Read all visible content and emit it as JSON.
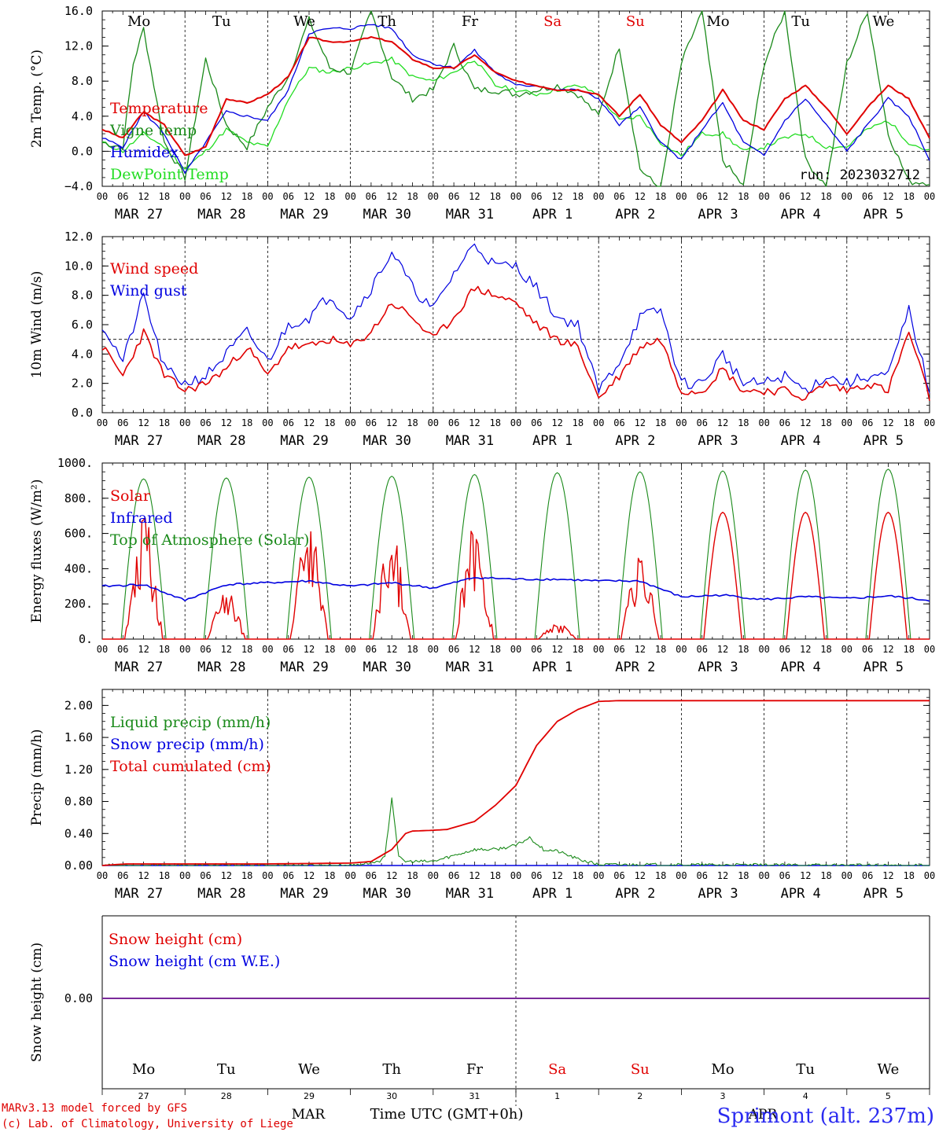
{
  "panels": [
    {
      "id": "temp",
      "ylabel": "2m Temp. (°C)",
      "ylim": [
        -4.0,
        16.0
      ],
      "ticks": [
        "16.0",
        "12.0",
        "8.0",
        "4.0",
        "0.0",
        "−4.0"
      ],
      "tick_values": [
        16,
        12,
        8,
        4,
        0,
        -4
      ],
      "ref_line": 0,
      "day_labels": [
        "Mo",
        "Tu",
        "We",
        "Th",
        "Fr",
        "Sa",
        "Su",
        "Mo",
        "Tu",
        "We"
      ],
      "weekend_color": "#e00000",
      "legend": [
        {
          "label": "Temperature",
          "color": "#e00000"
        },
        {
          "label": "Vigne temp",
          "color": "#1a8a1a"
        },
        {
          "label": "Humidex",
          "color": "#0000e0"
        },
        {
          "label": "DewPoint Temp",
          "color": "#22dd22"
        }
      ],
      "run_label": "run: 2023032712"
    },
    {
      "id": "wind",
      "ylabel": "10m Wind (m/s)",
      "ylim": [
        0,
        12.0
      ],
      "ticks": [
        "12.0",
        "10.0",
        "8.0",
        "6.0",
        "4.0",
        "2.0",
        "0.0"
      ],
      "tick_values": [
        12,
        10,
        8,
        6,
        4,
        2,
        0
      ],
      "ref_line": 5,
      "legend": [
        {
          "label": "Wind speed",
          "color": "#e00000"
        },
        {
          "label": "Wind gust",
          "color": "#0000e0"
        }
      ]
    },
    {
      "id": "energy",
      "ylabel": "Energy fluxes (W/m²)",
      "ylim": [
        0,
        1000
      ],
      "ticks": [
        "1000.",
        "800.",
        "600.",
        "400.",
        "200.",
        "0."
      ],
      "tick_values": [
        1000,
        800,
        600,
        400,
        200,
        0
      ],
      "legend": [
        {
          "label": "Solar",
          "color": "#e00000"
        },
        {
          "label": "Infrared",
          "color": "#0000e0"
        },
        {
          "label": "Top of Atmosphere (Solar)",
          "color": "#1a8a1a"
        }
      ]
    },
    {
      "id": "precip",
      "ylabel": "Precip (mm/h)",
      "ylim": [
        0,
        2.2
      ],
      "ticks": [
        "2.00",
        "1.60",
        "1.20",
        "0.80",
        "0.40",
        "0.00"
      ],
      "tick_values": [
        2.0,
        1.6,
        1.2,
        0.8,
        0.4,
        0.0
      ],
      "legend": [
        {
          "label": "Liquid precip (mm/h)",
          "color": "#1a8a1a"
        },
        {
          "label": "Snow precip (mm/h)",
          "color": "#0000e0"
        },
        {
          "label": "Total cumulated (cm)",
          "color": "#e00000"
        }
      ]
    },
    {
      "id": "snow",
      "ylabel": "Snow height (cm)",
      "ticks": [
        "0.00"
      ],
      "legend": [
        {
          "label": "Snow height (cm)",
          "color": "#e00000"
        },
        {
          "label": "Snow height (cm W.E.)",
          "color": "#0000e0"
        }
      ],
      "day_labels": [
        "Mo",
        "Tu",
        "We",
        "Th",
        "Fr",
        "Sa",
        "Su",
        "Mo",
        "Tu",
        "We"
      ],
      "day_numbers": [
        "27",
        "28",
        "29",
        "30",
        "31",
        "1",
        "2",
        "3",
        "4",
        "5"
      ]
    }
  ],
  "hour_ticks": [
    "00",
    "06",
    "12",
    "18"
  ],
  "final_hour": "00",
  "date_labels": [
    "MAR 27",
    "MAR 28",
    "MAR 29",
    "MAR 30",
    "MAR 31",
    "APR  1",
    "APR  2",
    "APR  3",
    "APR  4",
    "APR  5"
  ],
  "footer": {
    "line1": "MARv3.13 model forced by GFS",
    "line2": "(c) Lab. of Climatology, University of Liege",
    "month_mar": "MAR",
    "month_apr": "APR",
    "time_title": "Time UTC (GMT+0h)",
    "station": "Sprimont (alt. 237m)"
  },
  "chart_data": [
    {
      "type": "line",
      "title": "",
      "ylabel": "2m Temp. (°C)",
      "ylim": [
        -4,
        16
      ],
      "x_unit": "hours since 2023-03-27 00 UTC",
      "series": [
        {
          "name": "Temperature",
          "x": [
            0,
            6,
            12,
            18,
            24,
            30,
            36,
            42,
            48,
            54,
            60,
            66,
            72,
            78,
            84,
            90,
            96,
            102,
            108,
            114,
            120,
            126,
            132,
            138,
            144,
            150,
            156,
            162,
            168,
            174,
            180,
            186,
            192,
            198,
            204,
            210,
            216,
            222,
            228,
            234,
            240
          ],
          "values": [
            2.5,
            1.5,
            4.5,
            3.0,
            -0.5,
            0.5,
            6.0,
            5.5,
            6.5,
            8.5,
            13.0,
            12.5,
            12.5,
            13.0,
            12.5,
            10.5,
            9.5,
            9.5,
            11.0,
            9.0,
            8.0,
            7.5,
            7.0,
            7.0,
            6.5,
            4.0,
            6.5,
            3.0,
            1.0,
            3.5,
            7.0,
            3.5,
            2.5,
            6.0,
            7.5,
            5.0,
            2.0,
            5.0,
            7.5,
            6.0,
            1.5
          ]
        },
        {
          "name": "Vigne temp",
          "x": [
            0,
            6,
            9,
            12,
            18,
            24,
            30,
            36,
            42,
            48,
            54,
            60,
            66,
            72,
            78,
            84,
            90,
            96,
            102,
            108,
            114,
            120,
            126,
            132,
            138,
            144,
            150,
            156,
            162,
            168,
            174,
            180,
            186,
            192,
            198,
            204,
            210,
            216,
            222,
            228,
            234,
            240
          ],
          "values": [
            1.0,
            0.5,
            10.0,
            14.0,
            1.0,
            -3.0,
            10.5,
            3.0,
            0.5,
            5.0,
            8.5,
            15.0,
            9.5,
            9.0,
            16.0,
            8.5,
            6.0,
            7.0,
            12.0,
            7.0,
            7.0,
            6.5,
            7.0,
            7.5,
            6.5,
            4.0,
            12.0,
            -2.0,
            -4.5,
            10.0,
            16.0,
            -1.0,
            -4.0,
            10.0,
            16.0,
            -1.0,
            -4.0,
            10.0,
            16.0,
            2.0,
            -3.5,
            -3.5
          ]
        },
        {
          "name": "Humidex",
          "x": [
            0,
            6,
            12,
            18,
            24,
            30,
            36,
            42,
            48,
            54,
            60,
            66,
            72,
            78,
            84,
            90,
            96,
            102,
            108,
            114,
            120,
            126,
            132,
            138,
            144,
            150,
            156,
            162,
            168,
            174,
            180,
            186,
            192,
            198,
            204,
            210,
            216,
            222,
            228,
            234,
            240
          ],
          "values": [
            1.5,
            0.5,
            4.5,
            2.0,
            -2.5,
            1.0,
            4.5,
            4.0,
            3.5,
            7.0,
            13.5,
            14.0,
            14.0,
            14.5,
            14.0,
            11.0,
            10.0,
            9.5,
            11.5,
            9.0,
            7.5,
            7.5,
            7.0,
            7.0,
            6.0,
            3.0,
            5.0,
            1.0,
            -1.0,
            2.5,
            5.5,
            1.0,
            -0.5,
            3.5,
            6.0,
            3.0,
            0.0,
            3.0,
            6.0,
            4.0,
            -1.0
          ]
        },
        {
          "name": "DewPoint Temp",
          "x": [
            0,
            6,
            12,
            18,
            24,
            30,
            36,
            42,
            48,
            54,
            60,
            66,
            72,
            78,
            84,
            90,
            96,
            102,
            108,
            114,
            120,
            126,
            132,
            138,
            144,
            150,
            156,
            162,
            168,
            174,
            180,
            186,
            192,
            198,
            204,
            210,
            216,
            222,
            228,
            234,
            240
          ],
          "values": [
            1.0,
            0.0,
            2.0,
            0.5,
            -2.0,
            0.0,
            2.5,
            1.0,
            0.5,
            6.0,
            9.5,
            9.0,
            9.5,
            10.0,
            10.5,
            8.5,
            8.0,
            9.0,
            10.5,
            7.5,
            7.0,
            6.5,
            7.0,
            7.5,
            6.5,
            3.5,
            4.0,
            1.0,
            -0.5,
            2.0,
            2.0,
            0.0,
            0.5,
            1.5,
            2.0,
            0.5,
            0.5,
            2.5,
            3.5,
            1.0,
            0.0
          ]
        }
      ]
    },
    {
      "type": "line",
      "title": "",
      "ylabel": "10m Wind (m/s)",
      "ylim": [
        0,
        12
      ],
      "x_unit": "hours since 2023-03-27 00 UTC",
      "series": [
        {
          "name": "Wind speed",
          "x": [
            0,
            6,
            12,
            18,
            24,
            30,
            36,
            42,
            48,
            54,
            60,
            66,
            72,
            78,
            84,
            90,
            96,
            102,
            108,
            114,
            120,
            126,
            132,
            138,
            144,
            150,
            156,
            162,
            168,
            174,
            180,
            186,
            192,
            198,
            204,
            210,
            216,
            222,
            228,
            234,
            240
          ],
          "values": [
            4.5,
            2.5,
            5.5,
            2.5,
            1.5,
            2.0,
            3.0,
            4.5,
            2.5,
            4.5,
            4.5,
            5.0,
            4.5,
            5.5,
            7.5,
            6.5,
            5.0,
            6.5,
            8.5,
            8.0,
            7.5,
            6.0,
            5.0,
            4.5,
            1.0,
            2.5,
            4.5,
            5.0,
            1.5,
            1.5,
            3.0,
            1.5,
            1.5,
            1.5,
            1.0,
            2.0,
            1.5,
            2.0,
            1.5,
            5.5,
            1.0
          ]
        },
        {
          "name": "Wind gust",
          "x": [
            0,
            6,
            12,
            18,
            24,
            30,
            36,
            42,
            48,
            54,
            60,
            66,
            72,
            78,
            84,
            90,
            96,
            102,
            108,
            114,
            120,
            126,
            132,
            138,
            144,
            150,
            156,
            162,
            168,
            174,
            180,
            186,
            192,
            198,
            204,
            210,
            216,
            222,
            228,
            234,
            240
          ],
          "values": [
            6.0,
            3.5,
            8.0,
            3.0,
            2.0,
            2.5,
            4.0,
            5.5,
            3.5,
            6.0,
            6.5,
            8.0,
            6.5,
            8.5,
            11.0,
            8.5,
            7.0,
            9.5,
            11.5,
            10.0,
            10.0,
            8.5,
            6.5,
            6.0,
            1.5,
            3.5,
            6.5,
            7.0,
            2.0,
            2.0,
            4.0,
            2.0,
            2.0,
            2.5,
            1.5,
            2.5,
            2.0,
            2.5,
            2.5,
            7.0,
            1.5
          ]
        }
      ]
    },
    {
      "type": "line",
      "title": "",
      "ylabel": "Energy fluxes (W/m²)",
      "ylim": [
        0,
        1000
      ],
      "x_unit": "hours since 2023-03-27 00 UTC",
      "series": [
        {
          "name": "Top of Atmosphere (Solar) daily peak",
          "x": [
            12,
            36,
            60,
            84,
            108,
            132,
            156,
            180,
            204,
            228
          ],
          "values": [
            910,
            915,
            920,
            925,
            935,
            945,
            950,
            955,
            960,
            965
          ]
        },
        {
          "name": "Solar daily peak",
          "x": [
            12,
            36,
            60,
            84,
            108,
            132,
            156,
            180,
            204,
            228
          ],
          "values": [
            650,
            250,
            590,
            540,
            590,
            80,
            430,
            720,
            720,
            720
          ]
        },
        {
          "name": "Infrared",
          "x": [
            0,
            12,
            24,
            36,
            48,
            60,
            72,
            84,
            96,
            108,
            120,
            132,
            144,
            156,
            168,
            180,
            192,
            204,
            216,
            228,
            240
          ],
          "values": [
            300,
            310,
            220,
            310,
            320,
            330,
            300,
            320,
            290,
            350,
            340,
            340,
            330,
            330,
            240,
            250,
            225,
            240,
            230,
            245,
            220
          ]
        }
      ]
    },
    {
      "type": "line",
      "title": "",
      "ylabel": "Precip (mm/h)",
      "ylim": [
        0,
        2.2
      ],
      "x_unit": "hours since 2023-03-27 00 UTC",
      "series": [
        {
          "name": "Total cumulated (cm)",
          "x": [
            0,
            7,
            24,
            48,
            72,
            78,
            84,
            88,
            90,
            96,
            100,
            108,
            114,
            120,
            126,
            132,
            138,
            144,
            150,
            168,
            240
          ],
          "values": [
            0,
            0.02,
            0.02,
            0.02,
            0.03,
            0.05,
            0.2,
            0.4,
            0.43,
            0.44,
            0.45,
            0.55,
            0.75,
            1.0,
            1.5,
            1.8,
            1.95,
            2.05,
            2.06,
            2.06,
            2.06
          ]
        },
        {
          "name": "Liquid precip (mm/h)",
          "x": [
            0,
            72,
            80,
            82,
            84,
            86,
            88,
            96,
            108,
            114,
            120,
            124,
            128,
            132,
            138,
            144,
            240
          ],
          "values": [
            0,
            0,
            0.05,
            0.1,
            0.85,
            0.1,
            0.05,
            0.05,
            0.2,
            0.2,
            0.25,
            0.35,
            0.2,
            0.18,
            0.08,
            0.01,
            0
          ]
        },
        {
          "name": "Snow precip (mm/h)",
          "x": [
            0,
            240
          ],
          "values": [
            0,
            0
          ]
        }
      ]
    },
    {
      "type": "line",
      "title": "",
      "ylabel": "Snow height (cm)",
      "series": [
        {
          "name": "Snow height (cm)",
          "x": [
            0,
            240
          ],
          "values": [
            0,
            0
          ]
        },
        {
          "name": "Snow height (cm W.E.)",
          "x": [
            0,
            240
          ],
          "values": [
            0,
            0
          ]
        }
      ]
    }
  ]
}
